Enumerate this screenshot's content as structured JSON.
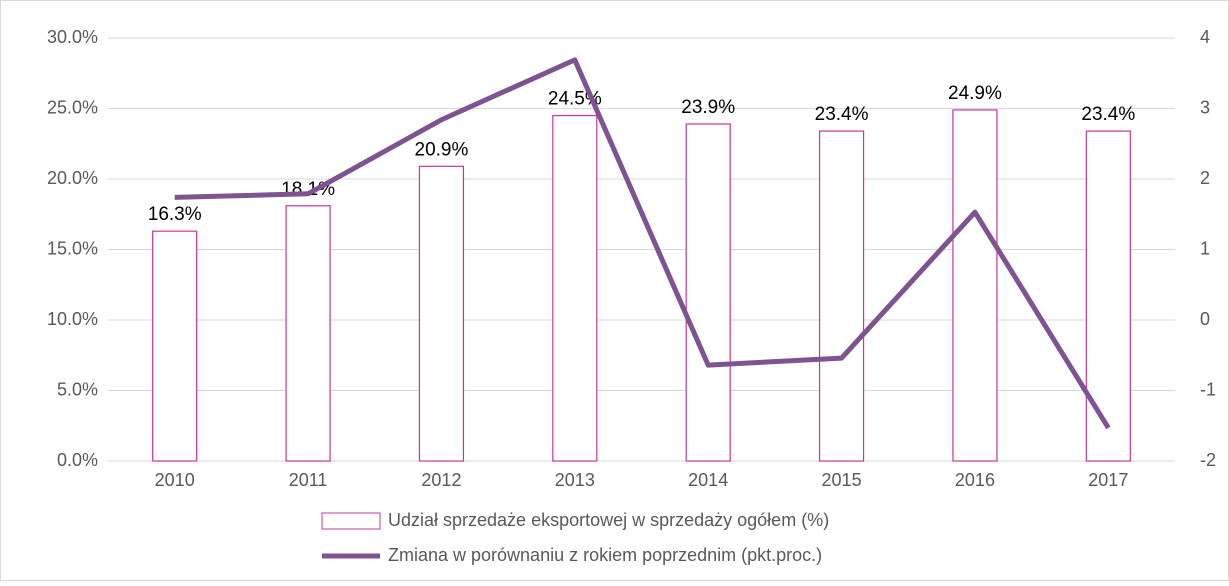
{
  "chart_data": {
    "type": "bar",
    "categories": [
      "2010",
      "2011",
      "2012",
      "2013",
      "2014",
      "2015",
      "2016",
      "2017"
    ],
    "series": [
      {
        "name": "Udział sprzedaże eksportowej w sprzedaży ogółem (%)",
        "color": "#cc3399",
        "type": "bar",
        "values": [
          16.3,
          18.1,
          20.9,
          24.5,
          23.9,
          23.4,
          24.9,
          23.4
        ],
        "value_labels": [
          "16.3%",
          "18.1%",
          "20.9%",
          "24.5%",
          "23.9%",
          "23.4%",
          "24.9%",
          "23.4%"
        ]
      },
      {
        "name": "Zmiana w porównaniu z rokiem poprzednim (pkt.proc.)",
        "color": "#7f5292",
        "type": "line",
        "axis": "y2",
        "values": [
          1.74,
          1.79,
          2.84,
          3.69,
          -0.64,
          -0.54,
          1.53,
          -1.53
        ]
      }
    ],
    "ylim": [
      0,
      30
    ],
    "yticks": [
      {
        "value": 0,
        "label": "0.0%"
      },
      {
        "value": 5,
        "label": "5.0%"
      },
      {
        "value": 10,
        "label": "10.0%"
      },
      {
        "value": 15,
        "label": "15.0%"
      },
      {
        "value": 20,
        "label": "20.0%"
      },
      {
        "value": 25,
        "label": "25.0%"
      },
      {
        "value": 30,
        "label": "30.0%"
      }
    ],
    "y2lim": [
      -2,
      4
    ],
    "y2ticks": [
      -2,
      -1,
      0,
      1,
      2,
      3,
      4
    ],
    "grid": true,
    "legend": "bottom"
  }
}
